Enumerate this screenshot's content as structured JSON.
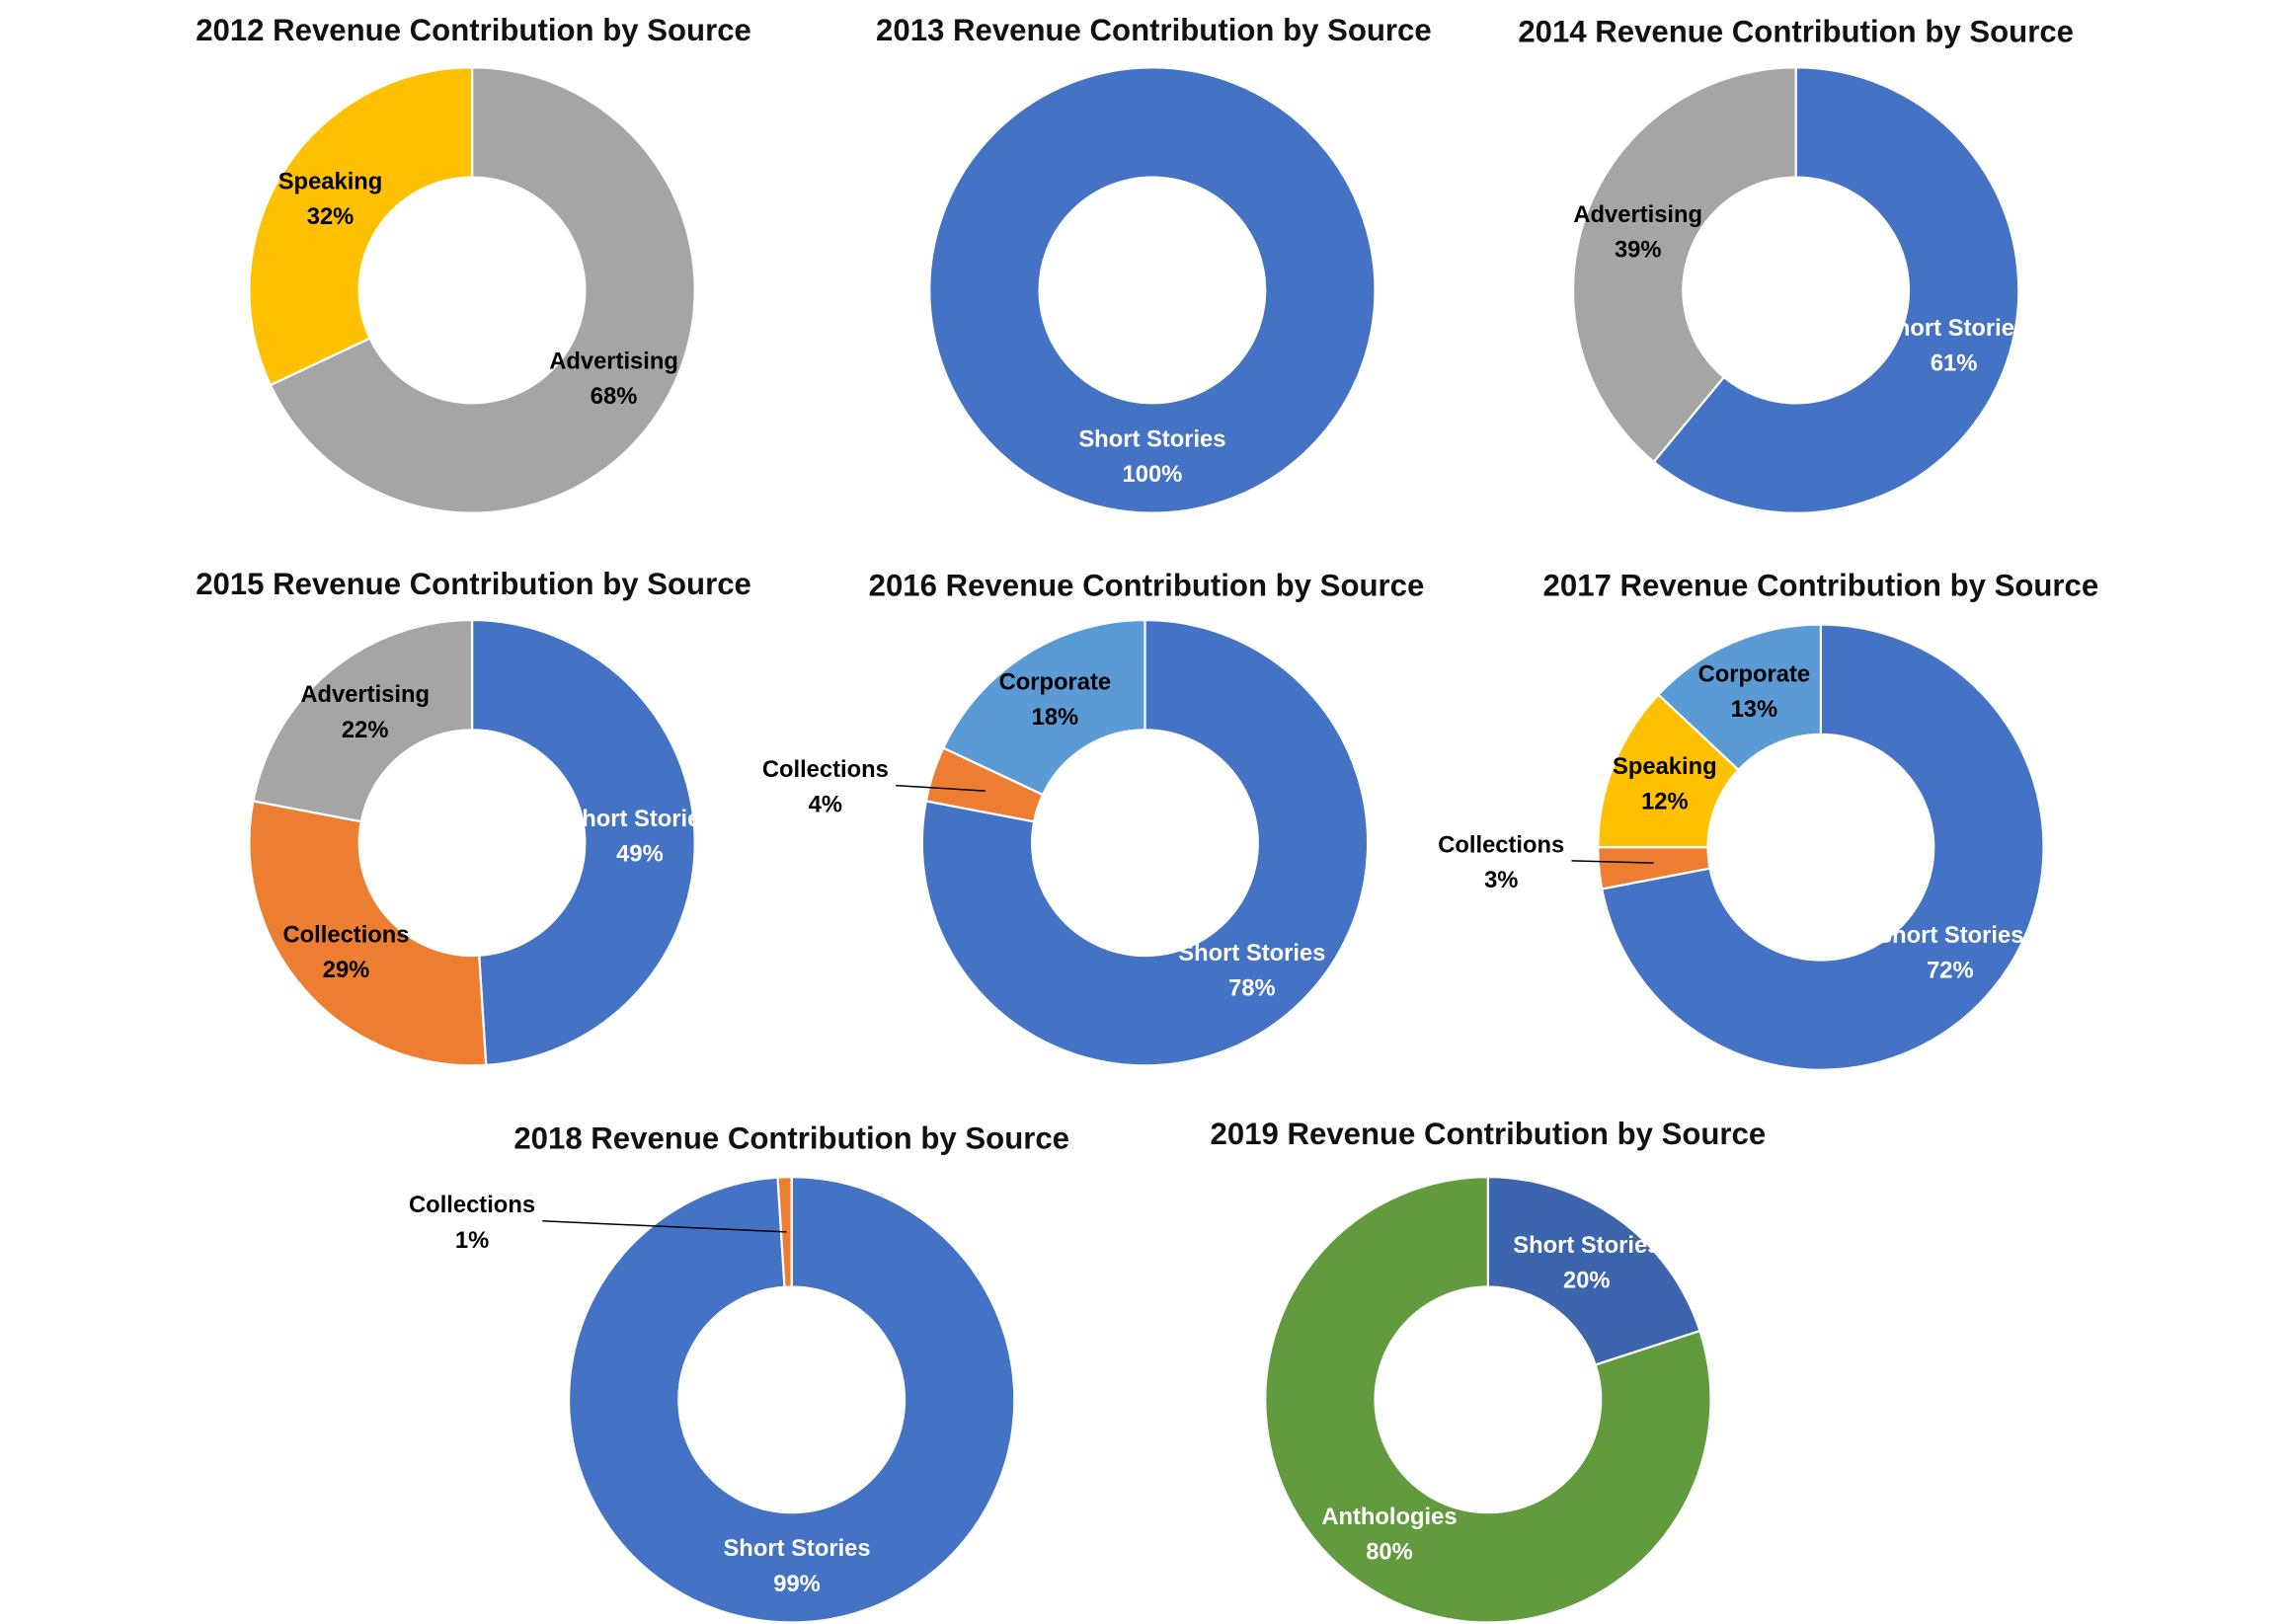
{
  "chart_data": [
    {
      "type": "donut",
      "title": "2012 Revenue Contribution by Source",
      "categories": [
        "Advertising",
        "Speaking"
      ],
      "values": [
        68,
        32
      ],
      "value_labels": [
        "68%",
        "32%"
      ],
      "colors": [
        "#a5a5a5",
        "#ffc000"
      ]
    },
    {
      "type": "donut",
      "title": "2013 Revenue Contribution by Source",
      "categories": [
        "Short Stories"
      ],
      "values": [
        100
      ],
      "value_labels": [
        "100%"
      ],
      "colors": [
        "#4472c4"
      ]
    },
    {
      "type": "donut",
      "title": "2014 Revenue Contribution by Source",
      "categories": [
        "Short Stories",
        "Advertising"
      ],
      "values": [
        61,
        39
      ],
      "value_labels": [
        "61%",
        "39%"
      ],
      "colors": [
        "#4472c4",
        "#a5a5a5"
      ]
    },
    {
      "type": "donut",
      "title": "2015 Revenue Contribution by Source",
      "categories": [
        "Short Stories",
        "Collections",
        "Advertising"
      ],
      "values": [
        49,
        29,
        22
      ],
      "value_labels": [
        "49%",
        "29%",
        "22%"
      ],
      "colors": [
        "#4472c4",
        "#ed7d31",
        "#a5a5a5"
      ]
    },
    {
      "type": "donut",
      "title": "2016 Revenue Contribution by Source",
      "categories": [
        "Short Stories",
        "Collections",
        "Corporate"
      ],
      "values": [
        78,
        4,
        18
      ],
      "value_labels": [
        "78%",
        "4%",
        "18%"
      ],
      "colors": [
        "#4472c4",
        "#ed7d31",
        "#5b9bd5"
      ]
    },
    {
      "type": "donut",
      "title": "2017 Revenue Contribution by Source",
      "categories": [
        "Short Stories",
        "Collections",
        "Speaking",
        "Corporate"
      ],
      "values": [
        72,
        3,
        12,
        13
      ],
      "value_labels": [
        "72%",
        "3%",
        "12%",
        "13%"
      ],
      "colors": [
        "#4472c4",
        "#ed7d31",
        "#ffc000",
        "#5b9bd5"
      ]
    },
    {
      "type": "donut",
      "title": "2018 Revenue Contribution by Source",
      "categories": [
        "Short Stories",
        "Collections"
      ],
      "values": [
        99,
        1
      ],
      "value_labels": [
        "99%",
        "1%"
      ],
      "colors": [
        "#4472c4",
        "#ed7d31"
      ]
    },
    {
      "type": "donut",
      "title": "2019 Revenue Contribution by Source",
      "categories": [
        "Short Stories",
        "Anthologies"
      ],
      "values": [
        20,
        80
      ],
      "value_labels": [
        "20%",
        "80%"
      ],
      "colors": [
        "#3c65ad",
        "#629a3e"
      ]
    }
  ]
}
